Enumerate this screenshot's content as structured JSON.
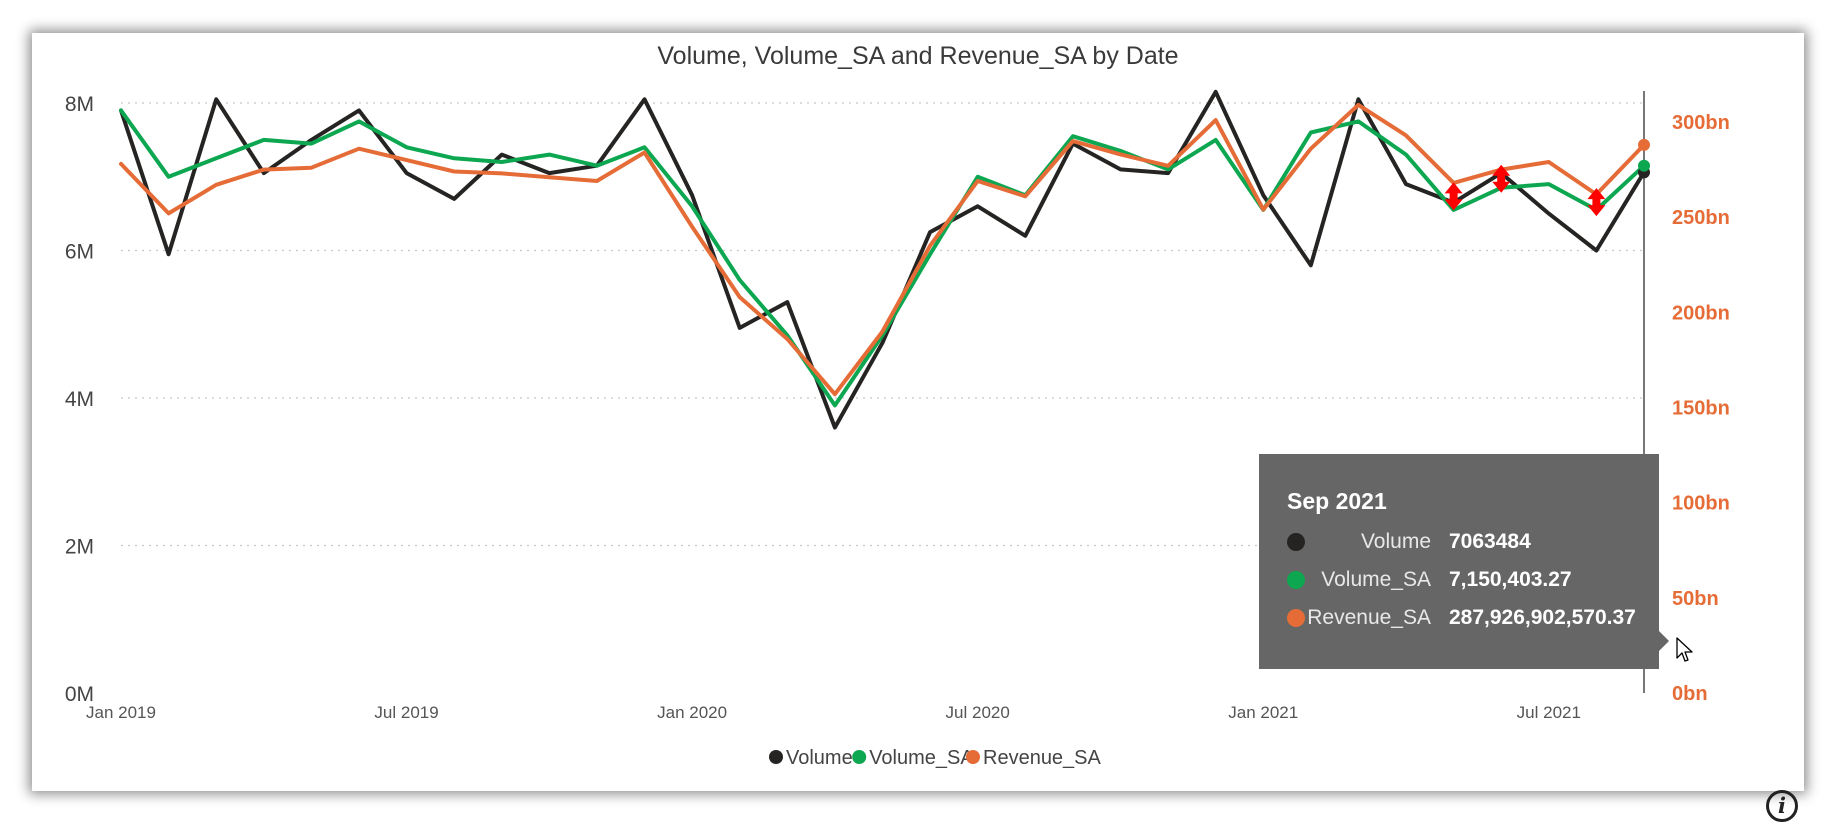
{
  "chart_data": {
    "type": "line",
    "title": "Volume, Volume_SA and Revenue_SA by Date",
    "x": [
      "2019-01",
      "2019-02",
      "2019-03",
      "2019-04",
      "2019-05",
      "2019-06",
      "2019-07",
      "2019-08",
      "2019-09",
      "2019-10",
      "2019-11",
      "2019-12",
      "2020-01",
      "2020-02",
      "2020-03",
      "2020-04",
      "2020-05",
      "2020-06",
      "2020-07",
      "2020-08",
      "2020-09",
      "2020-10",
      "2020-11",
      "2020-12",
      "2021-01",
      "2021-02",
      "2021-03",
      "2021-04",
      "2021-05",
      "2021-06",
      "2021-07",
      "2021-08",
      "2021-09"
    ],
    "x_ticks": [
      "Jan 2019",
      "Jul 2019",
      "Jan 2020",
      "Jul 2020",
      "Jan 2021",
      "Jul 2021"
    ],
    "x_tick_positions": [
      0,
      6,
      12,
      18,
      24,
      30
    ],
    "y_left": {
      "ticks": [
        "0M",
        "2M",
        "4M",
        "6M",
        "8M"
      ],
      "tick_values": [
        0,
        2,
        4,
        6,
        8
      ],
      "unit": "M",
      "ylim": [
        0,
        8
      ]
    },
    "y_right": {
      "ticks": [
        "0bn",
        "50bn",
        "100bn",
        "150bn",
        "200bn",
        "250bn",
        "300bn"
      ],
      "tick_values": [
        0,
        50,
        100,
        150,
        200,
        250,
        300
      ],
      "unit": "bn",
      "ylim": [
        0,
        310
      ],
      "color": "#E66C37"
    },
    "series": [
      {
        "name": "Volume",
        "axis": "left",
        "color": "#252423",
        "values": [
          7.9,
          5.95,
          8.05,
          7.05,
          7.5,
          7.9,
          7.05,
          6.7,
          7.3,
          7.05,
          7.15,
          8.05,
          6.75,
          4.95,
          5.3,
          3.6,
          4.75,
          6.25,
          6.6,
          6.2,
          7.45,
          7.1,
          7.05,
          8.15,
          6.75,
          5.8,
          8.05,
          6.9,
          6.65,
          7.05,
          6.5,
          6.0,
          7.06
        ]
      },
      {
        "name": "Volume_SA",
        "axis": "left",
        "color": "#0CA750",
        "values": [
          7.9,
          7.0,
          7.25,
          7.5,
          7.45,
          7.75,
          7.4,
          7.25,
          7.2,
          7.3,
          7.15,
          7.4,
          6.6,
          5.6,
          4.85,
          3.9,
          4.85,
          5.95,
          7.0,
          6.75,
          7.55,
          7.35,
          7.1,
          7.5,
          6.55,
          7.6,
          7.75,
          7.3,
          6.55,
          6.85,
          6.9,
          6.55,
          7.15
        ]
      },
      {
        "name": "Revenue_SA",
        "axis": "right",
        "color": "#E66C37",
        "values": [
          278,
          252,
          267,
          275,
          276,
          286,
          280,
          274,
          273,
          271,
          269,
          284,
          245,
          208,
          186,
          157,
          190,
          235,
          269,
          261,
          290,
          283,
          277,
          301,
          254,
          286,
          309,
          293,
          268,
          275,
          279,
          262,
          288
        ]
      }
    ],
    "legend": {
      "position": "bottom-center",
      "items": [
        "Volume",
        "Volume_SA",
        "Revenue_SA"
      ]
    },
    "crosshair_index": 32,
    "arrow_indices": [
      28,
      29,
      31
    ],
    "grid": true
  },
  "tooltip": {
    "date": "Sep 2021",
    "rows": [
      {
        "label": "Volume",
        "value": "7063484",
        "color": "#252423"
      },
      {
        "label": "Volume_SA",
        "value": "7,150,403.27",
        "color": "#0CA750"
      },
      {
        "label": "Revenue_SA",
        "value": "287,926,902,570.37",
        "color": "#E66C37"
      }
    ]
  }
}
